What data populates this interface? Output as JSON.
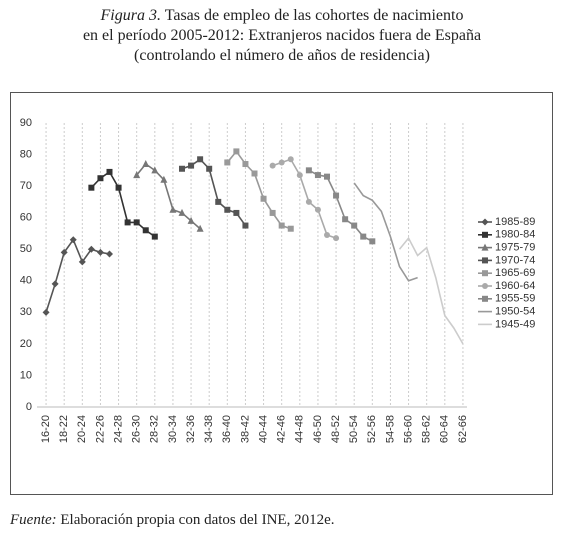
{
  "chart_data": {
    "type": "line",
    "figure_label": "Figura 3.",
    "title_lines": [
      "Tasas de empleo de las cohortes de nacimiento",
      "en el período 2005-2012: Extranjeros nacidos fuera de España",
      "(controlando el número de años de residencia)"
    ],
    "source_label": "Fuente:",
    "source_text": "Elaboración propia con datos del INE, 2012e.",
    "xlim": [
      15,
      63
    ],
    "xticks": [
      {
        "value": 16,
        "label": "16-20"
      },
      {
        "value": 18,
        "label": "18-22"
      },
      {
        "value": 20,
        "label": "20-24"
      },
      {
        "value": 22,
        "label": "22-26"
      },
      {
        "value": 24,
        "label": "24-28"
      },
      {
        "value": 26,
        "label": "26-30"
      },
      {
        "value": 28,
        "label": "28-32"
      },
      {
        "value": 30,
        "label": "30-34"
      },
      {
        "value": 32,
        "label": "32-36"
      },
      {
        "value": 34,
        "label": "34-38"
      },
      {
        "value": 36,
        "label": "36-40"
      },
      {
        "value": 38,
        "label": "38-42"
      },
      {
        "value": 40,
        "label": "40-44"
      },
      {
        "value": 42,
        "label": "42-46"
      },
      {
        "value": 44,
        "label": "44-48"
      },
      {
        "value": 46,
        "label": "46-50"
      },
      {
        "value": 48,
        "label": "48-52"
      },
      {
        "value": 50,
        "label": "50-54"
      },
      {
        "value": 52,
        "label": "52-56"
      },
      {
        "value": 54,
        "label": "54-58"
      },
      {
        "value": 56,
        "label": "56-60"
      },
      {
        "value": 58,
        "label": "58-62"
      },
      {
        "value": 60,
        "label": "60-64"
      },
      {
        "value": 62,
        "label": "62-66"
      }
    ],
    "ylim": [
      0,
      90
    ],
    "yticks": [
      0,
      10,
      20,
      30,
      40,
      50,
      60,
      70,
      80,
      90
    ],
    "grid": true,
    "legend": "right",
    "series": [
      {
        "name": "1985-89",
        "color": "#555555",
        "marker": "diamond",
        "x": [
          16,
          17,
          18,
          19,
          20,
          21,
          22,
          23
        ],
        "values": [
          30,
          39,
          49,
          53,
          46,
          50,
          49,
          48.5
        ]
      },
      {
        "name": "1980-84",
        "color": "#333333",
        "marker": "square",
        "x": [
          21,
          22,
          23,
          24,
          25,
          26,
          27,
          28
        ],
        "values": [
          69.5,
          72.5,
          74.5,
          69.5,
          58.5,
          58.5,
          56,
          54
        ]
      },
      {
        "name": "1975-79",
        "color": "#777777",
        "marker": "triangle",
        "x": [
          26,
          27,
          28,
          29,
          30,
          31,
          32,
          33
        ],
        "values": [
          73.5,
          77,
          75,
          72,
          62.5,
          61.5,
          59,
          56.5
        ]
      },
      {
        "name": "1970-74",
        "color": "#555555",
        "marker": "square",
        "x": [
          31,
          32,
          33,
          34,
          35,
          36,
          37,
          38
        ],
        "values": [
          75.5,
          76.5,
          78.5,
          75.5,
          65,
          62.5,
          61.5,
          57.5
        ]
      },
      {
        "name": "1965-69",
        "color": "#999999",
        "marker": "square",
        "x": [
          36,
          37,
          38,
          39,
          40,
          41,
          42,
          43
        ],
        "values": [
          77.5,
          81,
          77,
          74,
          66,
          61.5,
          57.5,
          56.5
        ]
      },
      {
        "name": "1960-64",
        "color": "#aaaaaa",
        "marker": "circle",
        "x": [
          41,
          42,
          43,
          44,
          45,
          46,
          47,
          48
        ],
        "values": [
          76.5,
          77.5,
          78.5,
          73.5,
          65,
          62.5,
          54.5,
          53.5
        ]
      },
      {
        "name": "1955-59",
        "color": "#888888",
        "marker": "square",
        "x": [
          45,
          46,
          47,
          48,
          49,
          50,
          51,
          52
        ],
        "values": [
          75,
          73.5,
          73,
          67,
          59.5,
          57.5,
          54,
          52.5
        ]
      },
      {
        "name": "1950-54",
        "color": "#999999",
        "marker": "none",
        "x": [
          50,
          51,
          52,
          53,
          54,
          55,
          56,
          57
        ],
        "values": [
          71,
          67,
          65.5,
          62,
          54,
          44.5,
          40,
          41
        ]
      },
      {
        "name": "1945-49",
        "color": "#cccccc",
        "marker": "none",
        "x": [
          55,
          56,
          57,
          58,
          59,
          60,
          61,
          62
        ],
        "values": [
          50,
          53.5,
          48,
          50.5,
          41,
          29,
          25,
          20
        ]
      }
    ]
  }
}
